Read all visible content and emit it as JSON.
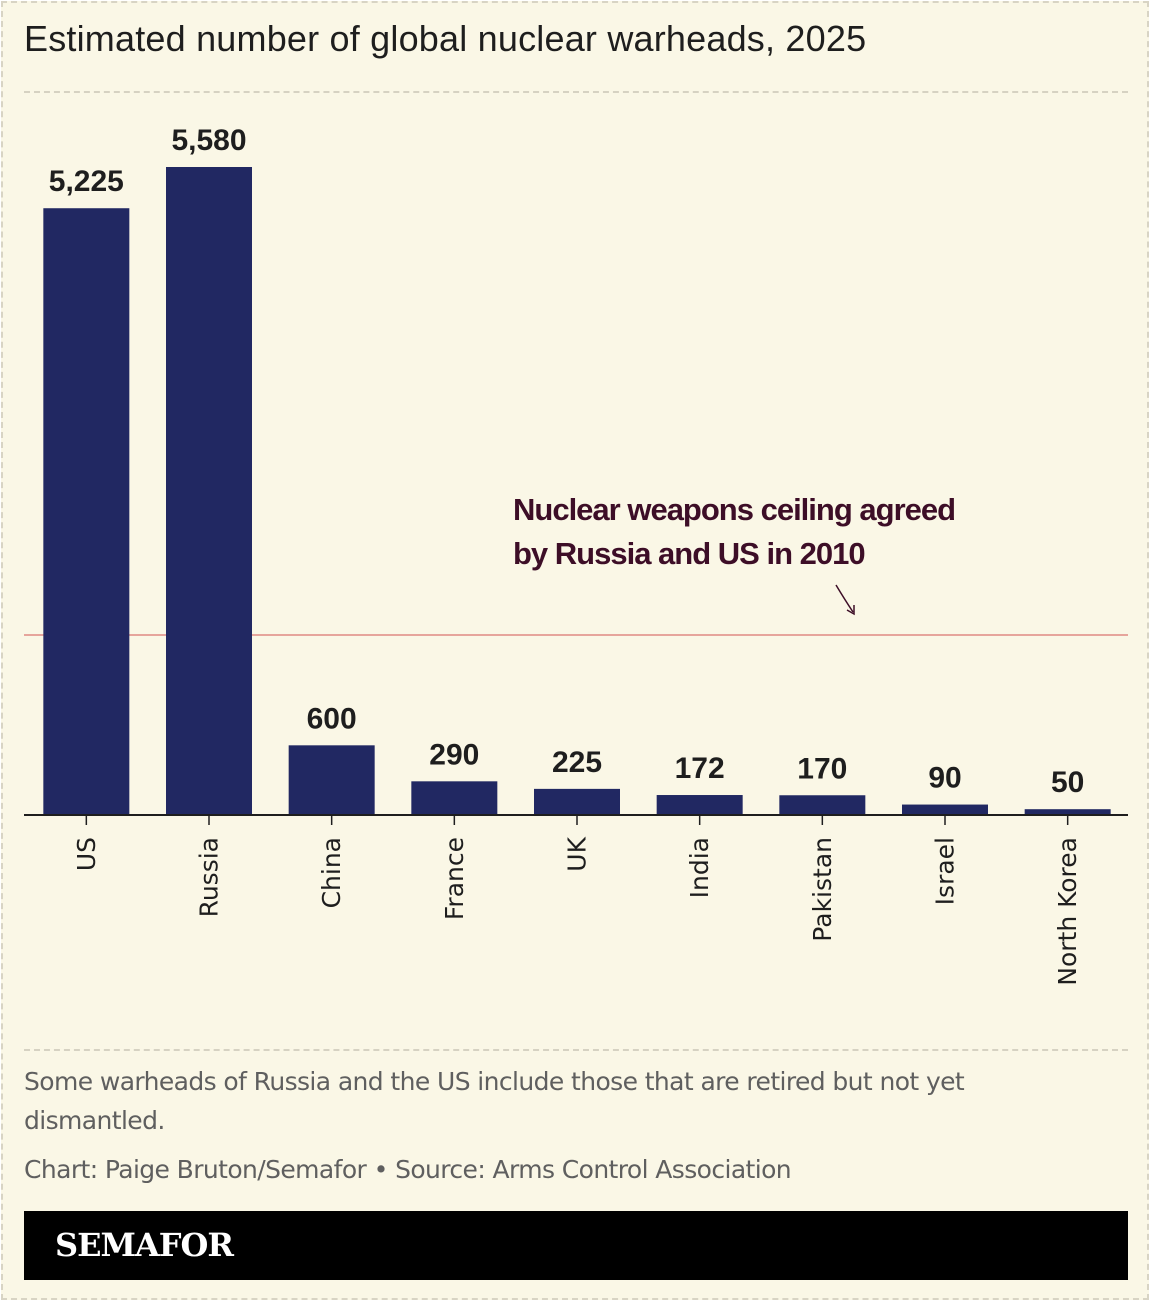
{
  "title": "Estimated number of global nuclear warheads, 2025",
  "chart_data": {
    "type": "bar",
    "title": "Estimated number of global nuclear warheads, 2025",
    "categories": [
      "US",
      "Russia",
      "China",
      "France",
      "UK",
      "India",
      "Pakistan",
      "Israel",
      "North Korea"
    ],
    "values": [
      5225,
      5580,
      600,
      290,
      225,
      172,
      170,
      90,
      50
    ],
    "value_labels": [
      "5,225",
      "5,580",
      "600",
      "290",
      "225",
      "172",
      "170",
      "90",
      "50"
    ],
    "xlabel": "",
    "ylabel": "",
    "ylim": [
      0,
      5580
    ],
    "grid": false,
    "legend": "none",
    "reference_line": {
      "value": 1550,
      "label_lines": [
        "Nuclear weapons ceiling agreed",
        "by Russia and US in 2010"
      ]
    }
  },
  "colors": {
    "background": "#faf7e6",
    "bar": "#212862",
    "reference_line": "#e08a84",
    "annotation": "#3d0e27",
    "footer": "#000000"
  },
  "note": "Some warheads of Russia and the US include those that are retired but not yet dismantled.",
  "credit": "Chart: Paige Bruton/Semafor • Source: Arms Control Association",
  "footer": {
    "logo": "SEMAFOR"
  }
}
